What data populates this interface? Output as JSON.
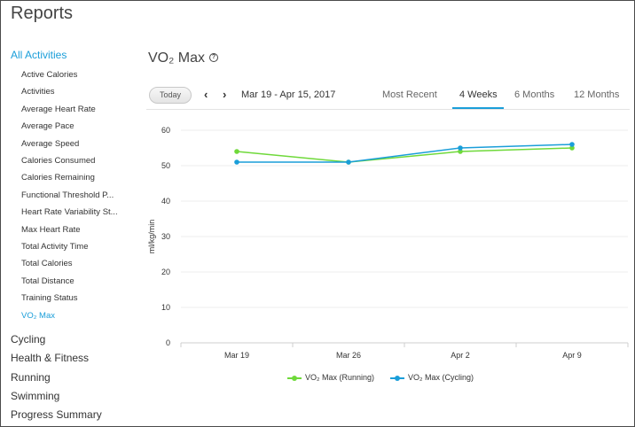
{
  "page": {
    "title": "Reports"
  },
  "sidebar": {
    "active_section": "All Activities",
    "sub_items": [
      "Active Calories",
      "Activities",
      "Average Heart Rate",
      "Average Pace",
      "Average Speed",
      "Calories Consumed",
      "Calories Remaining",
      "Functional Threshold P...",
      "Heart Rate Variability St...",
      "Max Heart Rate",
      "Total Activity Time",
      "Total Calories",
      "Total Distance",
      "Training Status",
      "VO₂ Max"
    ],
    "selected_sub_item": "VO₂ Max",
    "sections": [
      "Cycling",
      "Health & Fitness",
      "Running",
      "Swimming",
      "Progress Summary"
    ]
  },
  "header": {
    "chart_title": "VO₂ Max",
    "info_icon": "?",
    "today_label": "Today",
    "prev_icon": "‹",
    "next_icon": "›",
    "date_range": "Mar 19 - Apr 15, 2017"
  },
  "tabs": [
    {
      "label": "Most Recent",
      "active": false
    },
    {
      "label": "4 Weeks",
      "active": true
    },
    {
      "label": "6 Months",
      "active": false
    },
    {
      "label": "12 Months",
      "active": false
    }
  ],
  "colors": {
    "accent": "#1a9ed9",
    "running": "#6fd93a",
    "cycling": "#1a9ed9"
  },
  "chart_data": {
    "type": "line",
    "categories": [
      "Mar 19",
      "Mar 26",
      "Apr 2",
      "Apr 9"
    ],
    "series": [
      {
        "name": "VO₂ Max (Running)",
        "values": [
          54,
          51,
          54,
          55
        ],
        "color": "#6fd93a"
      },
      {
        "name": "VO₂ Max (Cycling)",
        "values": [
          51,
          51,
          55,
          56
        ],
        "color": "#1a9ed9"
      }
    ],
    "ylabel": "ml/kg/min",
    "ylim": [
      0,
      60
    ],
    "yticks": [
      "0",
      "10",
      "20",
      "30",
      "40",
      "50",
      "60"
    ],
    "grid": true,
    "legend": "bottom"
  }
}
